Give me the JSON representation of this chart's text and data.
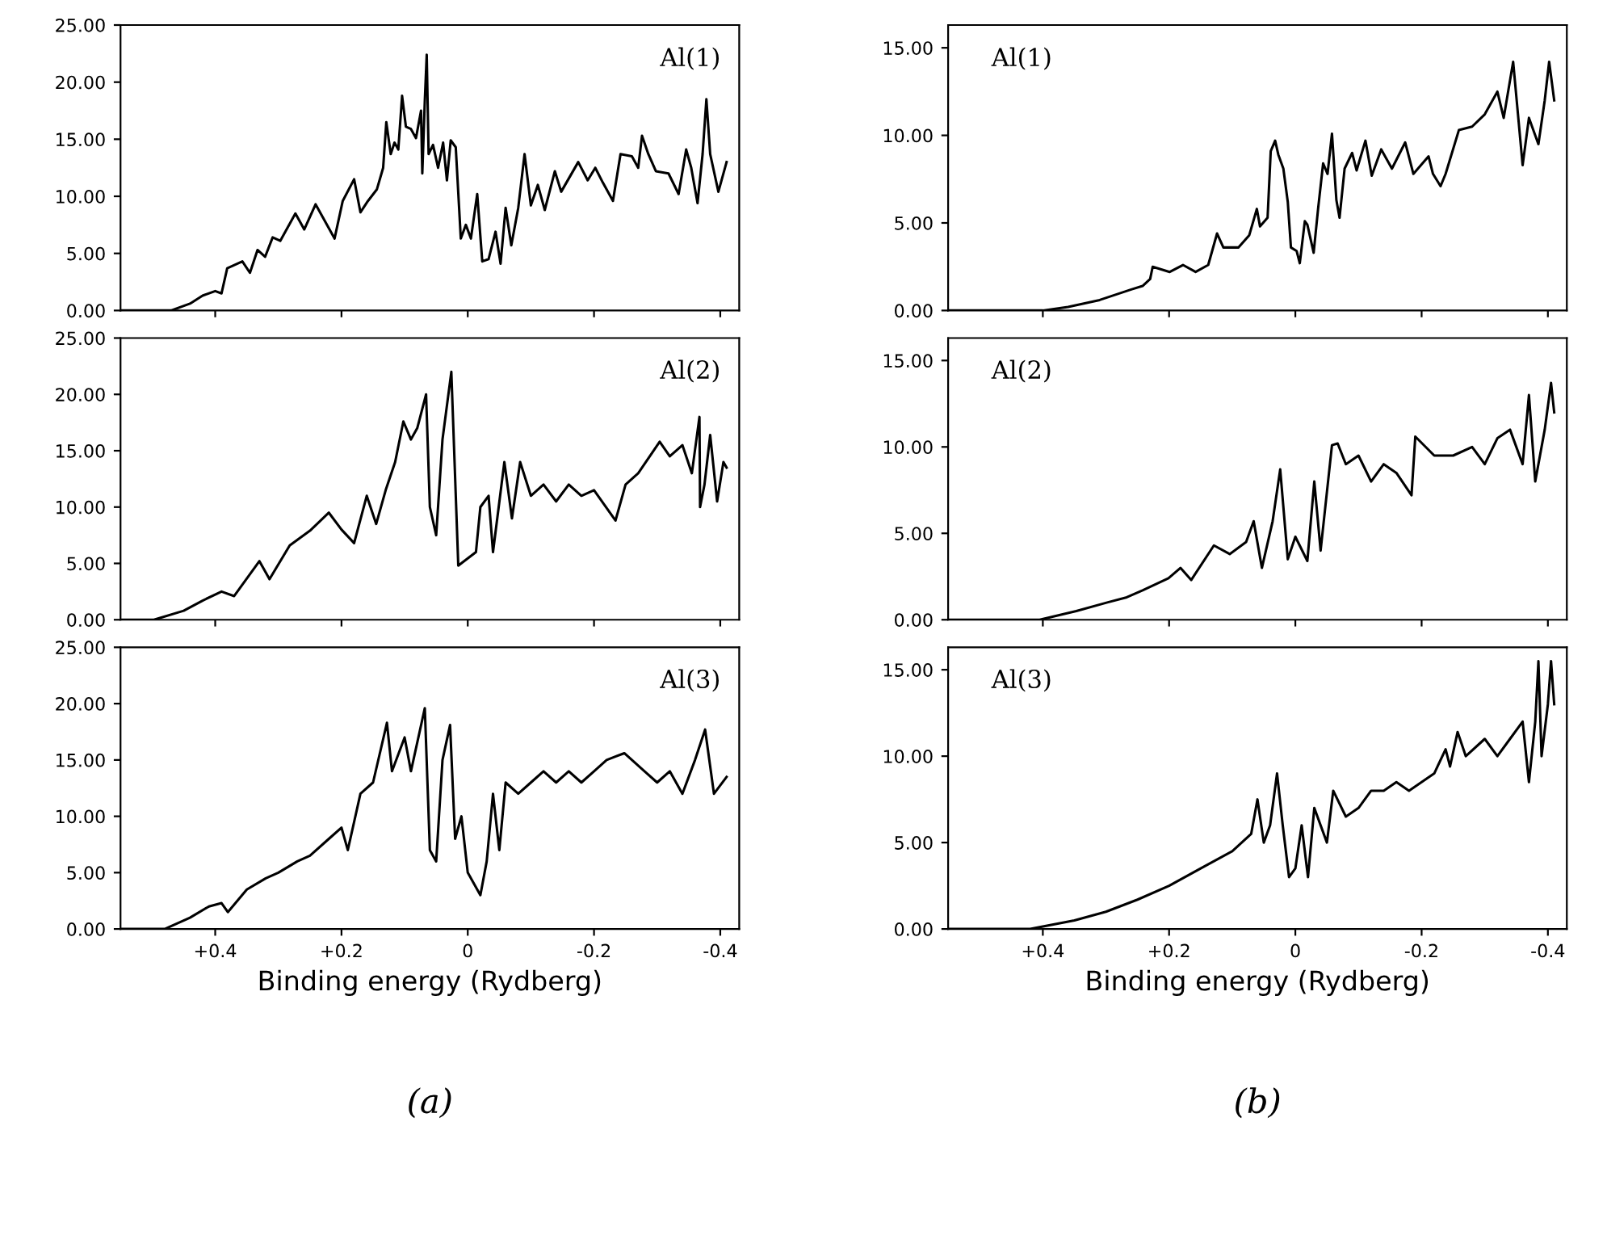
{
  "chart_data": [
    {
      "type": "line",
      "annotations": [
        "Al(1)"
      ],
      "xlim": [
        0.55,
        -0.43
      ],
      "ylim": [
        0,
        25
      ],
      "xticks": [
        {
          "value": 0.4,
          "label": null
        },
        {
          "value": 0.2,
          "label": null
        },
        {
          "value": 0,
          "label": null
        },
        {
          "value": -0.2,
          "label": null
        },
        {
          "value": -0.4,
          "label": null
        }
      ],
      "yticks": [
        {
          "value": 0,
          "label": "0.00"
        },
        {
          "value": 5,
          "label": "5.00"
        },
        {
          "value": 10,
          "label": "10.00"
        },
        {
          "value": 15,
          "label": "15.00"
        },
        {
          "value": 20,
          "label": "20.00"
        },
        {
          "value": 25,
          "label": "25.00"
        }
      ],
      "tick_labels": "y",
      "series": [
        {
          "color": "#000000",
          "x": [
            0.55,
            0.47,
            0.44,
            0.42,
            0.4,
            0.39,
            0.381,
            0.357,
            0.345,
            0.333,
            0.321,
            0.309,
            0.297,
            0.273,
            0.259,
            0.241,
            0.211,
            0.198,
            0.18,
            0.17,
            0.158,
            0.144,
            0.134,
            0.129,
            0.122,
            0.116,
            0.11,
            0.104,
            0.098,
            0.09,
            0.082,
            0.074,
            0.072,
            0.068,
            0.065,
            0.062,
            0.055,
            0.047,
            0.039,
            0.033,
            0.027,
            0.019,
            0.011,
            0.003,
            -0.005,
            -0.015,
            -0.023,
            -0.033,
            -0.044,
            -0.052,
            -0.06,
            -0.069,
            -0.08,
            -0.09,
            -0.1,
            -0.111,
            -0.122,
            -0.138,
            -0.148,
            -0.175,
            -0.19,
            -0.202,
            -0.214,
            -0.23,
            -0.242,
            -0.26,
            -0.27,
            -0.276,
            -0.286,
            -0.298,
            -0.318,
            -0.334,
            -0.346,
            -0.354,
            -0.364,
            -0.372,
            -0.378,
            -0.384,
            -0.397,
            -0.41
          ],
          "values": [
            0,
            0,
            0.6,
            1.3,
            1.7,
            1.5,
            3.7,
            4.3,
            3.3,
            5.3,
            4.7,
            6.4,
            6.1,
            8.5,
            7.1,
            9.3,
            6.3,
            9.6,
            11.5,
            8.6,
            9.6,
            10.6,
            12.5,
            16.5,
            13.7,
            14.7,
            14.1,
            18.8,
            16.1,
            15.9,
            15.1,
            17.5,
            12.0,
            18.4,
            22.4,
            13.7,
            14.5,
            12.5,
            14.7,
            11.4,
            14.9,
            14.3,
            6.3,
            7.5,
            6.3,
            10.2,
            4.3,
            4.5,
            6.9,
            4.1,
            9.0,
            5.7,
            9.0,
            13.7,
            9.2,
            11.0,
            8.8,
            12.2,
            10.4,
            13.0,
            11.4,
            12.5,
            11.2,
            9.6,
            13.7,
            13.5,
            12.5,
            15.3,
            13.7,
            12.2,
            12.0,
            10.2,
            14.1,
            12.5,
            9.4,
            13.7,
            18.5,
            13.7,
            10.4,
            13
          ]
        }
      ]
    },
    {
      "type": "line",
      "annotations": [
        "Al(1)"
      ],
      "xlim": [
        0.55,
        -0.43
      ],
      "ylim": [
        0,
        16.3
      ],
      "xticks": [
        {
          "value": 0.4,
          "label": null
        },
        {
          "value": 0.2,
          "label": null
        },
        {
          "value": 0,
          "label": null
        },
        {
          "value": -0.2,
          "label": null
        },
        {
          "value": -0.4,
          "label": null
        }
      ],
      "yticks": [
        {
          "value": 0,
          "label": "0.00"
        },
        {
          "value": 5,
          "label": "5.00"
        },
        {
          "value": 10,
          "label": "10.00"
        },
        {
          "value": 15,
          "label": "15.00"
        }
      ],
      "tick_labels": "y",
      "series": [
        {
          "color": "#000000",
          "x": [
            0.55,
            0.4,
            0.36,
            0.31,
            0.26,
            0.242,
            0.23,
            0.226,
            0.199,
            0.178,
            0.158,
            0.138,
            0.124,
            0.114,
            0.09,
            0.073,
            0.061,
            0.056,
            0.044,
            0.039,
            0.032,
            0.027,
            0.019,
            0.012,
            0.007,
            -0.002,
            -0.007,
            -0.015,
            -0.019,
            -0.029,
            -0.036,
            -0.044,
            -0.051,
            -0.058,
            -0.065,
            -0.07,
            -0.078,
            -0.09,
            -0.097,
            -0.111,
            -0.121,
            -0.136,
            -0.153,
            -0.174,
            -0.187,
            -0.211,
            -0.218,
            -0.23,
            -0.238,
            -0.259,
            -0.28,
            -0.3,
            -0.32,
            -0.33,
            -0.345,
            -0.36,
            -0.37,
            -0.385,
            -0.395,
            -0.402,
            -0.41
          ],
          "values": [
            0,
            0,
            0.2,
            0.6,
            1.2,
            1.4,
            1.8,
            2.5,
            2.2,
            2.6,
            2.2,
            2.6,
            4.4,
            3.6,
            3.6,
            4.3,
            5.8,
            4.8,
            5.3,
            9.1,
            9.7,
            8.9,
            8.1,
            6.2,
            3.6,
            3.4,
            2.7,
            5.1,
            4.9,
            3.3,
            5.8,
            8.4,
            7.8,
            10.1,
            6.3,
            5.3,
            8.1,
            9.0,
            8.0,
            9.7,
            7.7,
            9.2,
            8.1,
            9.6,
            7.8,
            8.8,
            7.8,
            7.1,
            7.8,
            10.3,
            10.5,
            11.2,
            12.5,
            11,
            14.2,
            8.3,
            11,
            9.5,
            12,
            14.2,
            12
          ]
        }
      ]
    },
    {
      "type": "line",
      "annotations": [
        "Al(2)"
      ],
      "xlim": [
        0.55,
        -0.43
      ],
      "ylim": [
        0,
        25
      ],
      "xticks": [
        {
          "value": 0.4,
          "label": null
        },
        {
          "value": 0.2,
          "label": null
        },
        {
          "value": 0,
          "label": null
        },
        {
          "value": -0.2,
          "label": null
        },
        {
          "value": -0.4,
          "label": null
        }
      ],
      "yticks": [
        {
          "value": 0,
          "label": "0.00"
        },
        {
          "value": 5,
          "label": "5.00"
        },
        {
          "value": 10,
          "label": "10.00"
        },
        {
          "value": 15,
          "label": "15.00"
        },
        {
          "value": 20,
          "label": "20.00"
        },
        {
          "value": 25,
          "label": "25.00"
        }
      ],
      "tick_labels": "y",
      "series": [
        {
          "color": "#000000",
          "x": [
            0.55,
            0.497,
            0.45,
            0.42,
            0.39,
            0.37,
            0.33,
            0.314,
            0.282,
            0.25,
            0.22,
            0.2,
            0.18,
            0.16,
            0.145,
            0.13,
            0.115,
            0.102,
            0.09,
            0.08,
            0.066,
            0.06,
            0.05,
            0.04,
            0.026,
            0.015,
            -0.013,
            -0.02,
            -0.033,
            -0.04,
            -0.058,
            -0.07,
            -0.083,
            -0.1,
            -0.12,
            -0.14,
            -0.16,
            -0.18,
            -0.2,
            -0.234,
            -0.25,
            -0.27,
            -0.304,
            -0.32,
            -0.34,
            -0.355,
            -0.367,
            -0.368,
            -0.375,
            -0.384,
            -0.395,
            -0.405,
            -0.41
          ],
          "values": [
            0,
            0,
            0.8,
            1.7,
            2.5,
            2.1,
            5.2,
            3.6,
            6.6,
            7.9,
            9.5,
            8.0,
            6.8,
            11,
            8.5,
            11.5,
            14,
            17.6,
            16,
            17,
            20,
            10,
            7.5,
            16,
            22,
            4.8,
            6,
            10,
            11,
            6,
            14,
            9,
            14,
            11,
            12,
            10.5,
            12,
            11,
            11.5,
            8.8,
            12,
            13,
            15.8,
            14.5,
            15.5,
            13,
            18.0,
            10,
            12,
            16.4,
            10.5,
            14,
            13.5
          ]
        }
      ]
    },
    {
      "type": "line",
      "annotations": [
        "Al(2)"
      ],
      "xlim": [
        0.55,
        -0.43
      ],
      "ylim": [
        0,
        16.3
      ],
      "xticks": [
        {
          "value": 0.4,
          "label": null
        },
        {
          "value": 0.2,
          "label": null
        },
        {
          "value": 0,
          "label": null
        },
        {
          "value": -0.2,
          "label": null
        },
        {
          "value": -0.4,
          "label": null
        }
      ],
      "yticks": [
        {
          "value": 0,
          "label": "0.00"
        },
        {
          "value": 5,
          "label": "5.00"
        },
        {
          "value": 10,
          "label": "10.00"
        },
        {
          "value": 15,
          "label": "15.00"
        }
      ],
      "tick_labels": "y",
      "series": [
        {
          "color": "#000000",
          "x": [
            0.55,
            0.405,
            0.347,
            0.298,
            0.267,
            0.242,
            0.201,
            0.182,
            0.165,
            0.129,
            0.104,
            0.078,
            0.066,
            0.053,
            0.036,
            0.024,
            0.012,
            0.0,
            -0.019,
            -0.03,
            -0.04,
            -0.058,
            -0.067,
            -0.08,
            -0.1,
            -0.12,
            -0.14,
            -0.16,
            -0.184,
            -0.19,
            -0.22,
            -0.25,
            -0.28,
            -0.3,
            -0.32,
            -0.34,
            -0.36,
            -0.37,
            -0.38,
            -0.395,
            -0.405,
            -0.41
          ],
          "values": [
            0,
            0,
            0.5,
            1.0,
            1.3,
            1.7,
            2.4,
            3.0,
            2.3,
            4.3,
            3.8,
            4.5,
            5.7,
            3.0,
            5.7,
            8.7,
            3.5,
            4.8,
            3.4,
            8,
            4,
            10.1,
            10.2,
            9,
            9.5,
            8,
            9,
            8.5,
            7.2,
            10.6,
            9.5,
            9.5,
            10,
            9,
            10.5,
            11,
            9,
            13,
            8,
            11,
            13.7,
            12
          ]
        }
      ]
    },
    {
      "type": "line",
      "annotations": [
        "Al(3)",
        "(a)"
      ],
      "xlabel": "Binding energy (Rydberg)",
      "xlim": [
        0.55,
        -0.43
      ],
      "ylim": [
        0,
        25
      ],
      "xticks": [
        {
          "value": 0.4,
          "label": "+0.4"
        },
        {
          "value": 0.2,
          "label": "+0.2"
        },
        {
          "value": 0,
          "label": "0"
        },
        {
          "value": -0.2,
          "label": "-0.2"
        },
        {
          "value": -0.4,
          "label": "-0.4"
        }
      ],
      "yticks": [
        {
          "value": 0,
          "label": "0.00"
        },
        {
          "value": 5,
          "label": "5.00"
        },
        {
          "value": 10,
          "label": "10.00"
        },
        {
          "value": 15,
          "label": "15.00"
        },
        {
          "value": 20,
          "label": "20.00"
        },
        {
          "value": 25,
          "label": "25.00"
        }
      ],
      "series": [
        {
          "color": "#000000",
          "x": [
            0.55,
            0.48,
            0.44,
            0.41,
            0.39,
            0.38,
            0.35,
            0.32,
            0.3,
            0.27,
            0.25,
            0.22,
            0.2,
            0.19,
            0.17,
            0.15,
            0.128,
            0.12,
            0.1,
            0.09,
            0.068,
            0.06,
            0.05,
            0.04,
            0.028,
            0.02,
            0.01,
            0,
            -0.01,
            -0.02,
            -0.03,
            -0.04,
            -0.05,
            -0.06,
            -0.08,
            -0.1,
            -0.12,
            -0.14,
            -0.16,
            -0.18,
            -0.2,
            -0.22,
            -0.248,
            -0.28,
            -0.3,
            -0.32,
            -0.34,
            -0.36,
            -0.376,
            -0.39,
            -0.41
          ],
          "values": [
            0,
            0,
            1,
            2,
            2.3,
            1.5,
            3.5,
            4.5,
            5,
            6,
            6.5,
            8,
            9,
            7,
            12,
            13,
            18.3,
            14,
            17,
            14,
            19.6,
            7,
            6,
            15,
            18.1,
            8,
            10,
            5,
            4,
            3,
            6,
            12,
            7,
            13,
            12,
            13,
            14,
            13,
            14,
            13,
            14,
            15,
            15.6,
            14,
            13,
            14,
            12,
            15,
            17.7,
            12,
            13.5
          ]
        }
      ]
    },
    {
      "type": "line",
      "annotations": [
        "Al(3)",
        "(b)"
      ],
      "xlabel": "Binding energy (Rydberg)",
      "xlim": [
        0.55,
        -0.43
      ],
      "ylim": [
        0,
        16.3
      ],
      "xticks": [
        {
          "value": 0.4,
          "label": "+0.4"
        },
        {
          "value": 0.2,
          "label": "+0.2"
        },
        {
          "value": 0,
          "label": "0"
        },
        {
          "value": -0.2,
          "label": "-0.2"
        },
        {
          "value": -0.4,
          "label": "-0.4"
        }
      ],
      "yticks": [
        {
          "value": 0,
          "label": "0.00"
        },
        {
          "value": 5,
          "label": "5.00"
        },
        {
          "value": 10,
          "label": "10.00"
        },
        {
          "value": 15,
          "label": "15.00"
        }
      ],
      "series": [
        {
          "color": "#000000",
          "x": [
            0.55,
            0.42,
            0.35,
            0.3,
            0.25,
            0.2,
            0.15,
            0.1,
            0.07,
            0.06,
            0.05,
            0.04,
            0.029,
            0.02,
            0.01,
            0,
            -0.01,
            -0.02,
            -0.03,
            -0.05,
            -0.06,
            -0.08,
            -0.1,
            -0.12,
            -0.14,
            -0.16,
            -0.18,
            -0.2,
            -0.22,
            -0.238,
            -0.245,
            -0.257,
            -0.27,
            -0.3,
            -0.32,
            -0.34,
            -0.36,
            -0.37,
            -0.38,
            -0.385,
            -0.39,
            -0.4,
            -0.405,
            -0.41
          ],
          "values": [
            0,
            0,
            0.5,
            1,
            1.7,
            2.5,
            3.5,
            4.5,
            5.5,
            7.5,
            5,
            6,
            9.0,
            6,
            3,
            3.5,
            6,
            3,
            7,
            5,
            8,
            6.5,
            7,
            8,
            8,
            8.5,
            8,
            8.5,
            9,
            10.4,
            9.4,
            11.4,
            10,
            11,
            10,
            11,
            12,
            8.5,
            12,
            15.5,
            10,
            13,
            15.5,
            13
          ]
        }
      ]
    }
  ]
}
